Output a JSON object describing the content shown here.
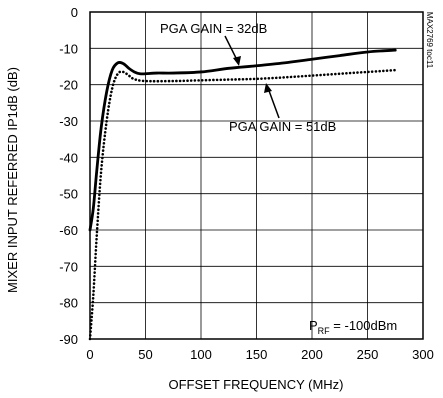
{
  "chart_data": {
    "type": "line",
    "title": "",
    "xlabel": "OFFSET FREQUENCY (MHz)",
    "ylabel": "MIXER INPUT REFERRED IP1dB (dB)",
    "xlim": [
      0,
      300
    ],
    "ylim": [
      -90,
      0
    ],
    "xticks": [
      0,
      50,
      100,
      150,
      200,
      250,
      300
    ],
    "yticks": [
      0,
      -10,
      -20,
      -30,
      -40,
      -50,
      -60,
      -70,
      -80,
      -90
    ],
    "grid": true,
    "series": [
      {
        "name": "PGA GAIN = 32dB",
        "style": "solid",
        "color": "#000000",
        "x": [
          0,
          3,
          6,
          10,
          15,
          20,
          25,
          30,
          35,
          40,
          45,
          50,
          60,
          75,
          100,
          125,
          150,
          175,
          200,
          225,
          250,
          275
        ],
        "y": [
          -60,
          -54,
          -44,
          -32,
          -22,
          -16,
          -14,
          -14.2,
          -15.5,
          -16.5,
          -17,
          -17,
          -16.8,
          -16.8,
          -16.5,
          -15.5,
          -14.8,
          -14,
          -13,
          -12,
          -11,
          -10.5
        ]
      },
      {
        "name": "PGA GAIN = 51dB",
        "style": "dotted",
        "color": "#000000",
        "x": [
          0,
          3,
          6,
          10,
          15,
          20,
          25,
          30,
          35,
          40,
          50,
          75,
          100,
          125,
          150,
          175,
          200,
          225,
          250,
          275
        ],
        "y": [
          -90,
          -78,
          -62,
          -44,
          -30,
          -21,
          -17,
          -16.5,
          -17.5,
          -18.5,
          -19,
          -19,
          -18.8,
          -18.6,
          -18.4,
          -18,
          -17.5,
          -17,
          -16.5,
          -16
        ]
      }
    ],
    "annotations": {
      "label_32": "PGA GAIN = 32dB",
      "label_51": "PGA GAIN = 51dB",
      "prf_main": "P",
      "prf_sub": "RF",
      "prf_rest": " = -100dBm"
    },
    "side_label": "MAX2769 toc11"
  }
}
